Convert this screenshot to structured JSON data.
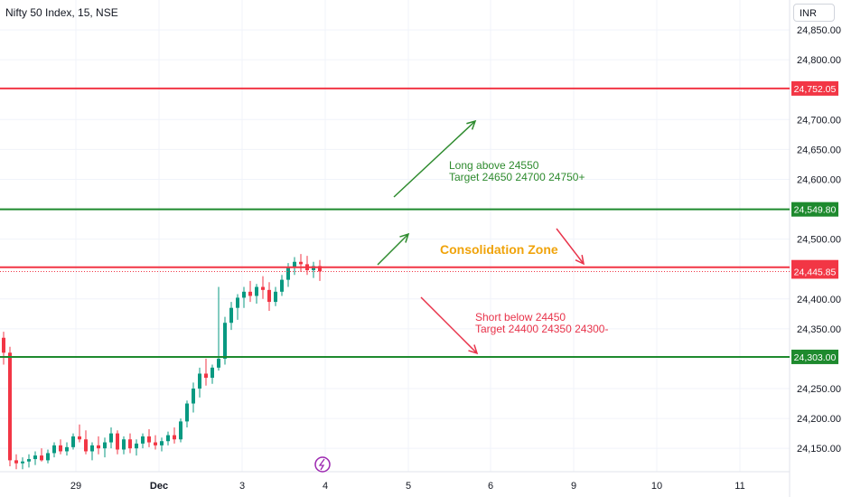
{
  "header": {
    "title": "Nifty 50 Index, 15, NSE",
    "currency": "INR"
  },
  "chart_data": {
    "type": "candlestick",
    "price_axis": {
      "ylim": [
        24120,
        24880
      ],
      "ticks": [
        "24,850.00",
        "24,800.00",
        "24,700.00",
        "24,650.00",
        "24,600.00",
        "24,500.00",
        "24,400.00",
        "24,350.00",
        "24,250.00",
        "24,200.00",
        "24,150.00"
      ],
      "tick_values": [
        24850,
        24800,
        24700,
        24650,
        24600,
        24500,
        24400,
        24350,
        24250,
        24200,
        24150
      ]
    },
    "time_axis": {
      "labels": [
        "29",
        "Dec",
        "3",
        "4",
        "5",
        "6",
        "9",
        "10",
        "11"
      ]
    },
    "levels": [
      {
        "value": 24752.05,
        "label": "24,752.05",
        "color": "#f23645",
        "style": "solid"
      },
      {
        "value": 24549.8,
        "label": "24,549.80",
        "color": "#089981",
        "style": "solid",
        "line_color": "#1e8a2e"
      },
      {
        "value": 24453.0,
        "label": "24,453.00",
        "color": "#f23645",
        "style": "solid"
      },
      {
        "value": 24445.85,
        "label": "24,445.85",
        "color": "#f23645",
        "style": "dotted"
      },
      {
        "value": 24303.0,
        "label": "24,303.00",
        "color": "#1e8a2e",
        "style": "solid"
      }
    ],
    "annotations": [
      {
        "text": "Long above 24550",
        "color": "#2e8b2e"
      },
      {
        "text": "Target 24650 24700 24750+",
        "color": "#2e8b2e"
      },
      {
        "text": "Consolidation Zone",
        "color": "#f0a30a"
      },
      {
        "text": "Short below 24450",
        "color": "#e8334a"
      },
      {
        "text": "Target 24400 24350 24300-",
        "color": "#e8334a"
      }
    ],
    "candles": [
      [
        24335,
        24345,
        24290,
        24310
      ],
      [
        24310,
        24320,
        24120,
        24130
      ],
      [
        24130,
        24140,
        24115,
        24125
      ],
      [
        24125,
        24135,
        24115,
        24128
      ],
      [
        24128,
        24140,
        24118,
        24132
      ],
      [
        24132,
        24145,
        24122,
        24138
      ],
      [
        24138,
        24150,
        24128,
        24130
      ],
      [
        24130,
        24148,
        24125,
        24142
      ],
      [
        24142,
        24160,
        24135,
        24155
      ],
      [
        24155,
        24165,
        24140,
        24145
      ],
      [
        24145,
        24160,
        24138,
        24152
      ],
      [
        24152,
        24175,
        24148,
        24170
      ],
      [
        24170,
        24190,
        24160,
        24165
      ],
      [
        24165,
        24180,
        24140,
        24145
      ],
      [
        24145,
        24160,
        24130,
        24155
      ],
      [
        24155,
        24170,
        24140,
        24150
      ],
      [
        24150,
        24168,
        24135,
        24160
      ],
      [
        24160,
        24185,
        24150,
        24175
      ],
      [
        24175,
        24180,
        24140,
        24148
      ],
      [
        24148,
        24170,
        24140,
        24165
      ],
      [
        24165,
        24175,
        24142,
        24150
      ],
      [
        24150,
        24165,
        24138,
        24158
      ],
      [
        24158,
        24175,
        24150,
        24170
      ],
      [
        24170,
        24182,
        24152,
        24160
      ],
      [
        24160,
        24172,
        24148,
        24155
      ],
      [
        24155,
        24168,
        24145,
        24162
      ],
      [
        24162,
        24178,
        24155,
        24172
      ],
      [
        24172,
        24185,
        24158,
        24165
      ],
      [
        24165,
        24200,
        24160,
        24195
      ],
      [
        24195,
        24230,
        24185,
        24225
      ],
      [
        24225,
        24260,
        24210,
        24250
      ],
      [
        24250,
        24285,
        24235,
        24275
      ],
      [
        24275,
        24300,
        24255,
        24268
      ],
      [
        24268,
        24290,
        24258,
        24285
      ],
      [
        24285,
        24420,
        24280,
        24300
      ],
      [
        24300,
        24370,
        24290,
        24360
      ],
      [
        24360,
        24395,
        24348,
        24385
      ],
      [
        24385,
        24408,
        24365,
        24402
      ],
      [
        24402,
        24420,
        24385,
        24412
      ],
      [
        24412,
        24430,
        24395,
        24405
      ],
      [
        24405,
        24425,
        24392,
        24420
      ],
      [
        24420,
        24438,
        24400,
        24415
      ],
      [
        24415,
        24428,
        24380,
        24395
      ],
      [
        24395,
        24420,
        24388,
        24412
      ],
      [
        24412,
        24440,
        24405,
        24432
      ],
      [
        24432,
        24460,
        24420,
        24452
      ],
      [
        24452,
        24470,
        24440,
        24462
      ],
      [
        24462,
        24475,
        24445,
        24458
      ],
      [
        24458,
        24472,
        24440,
        24448
      ],
      [
        24448,
        24462,
        24435,
        24455
      ],
      [
        24455,
        24465,
        24430,
        24446
      ]
    ]
  }
}
